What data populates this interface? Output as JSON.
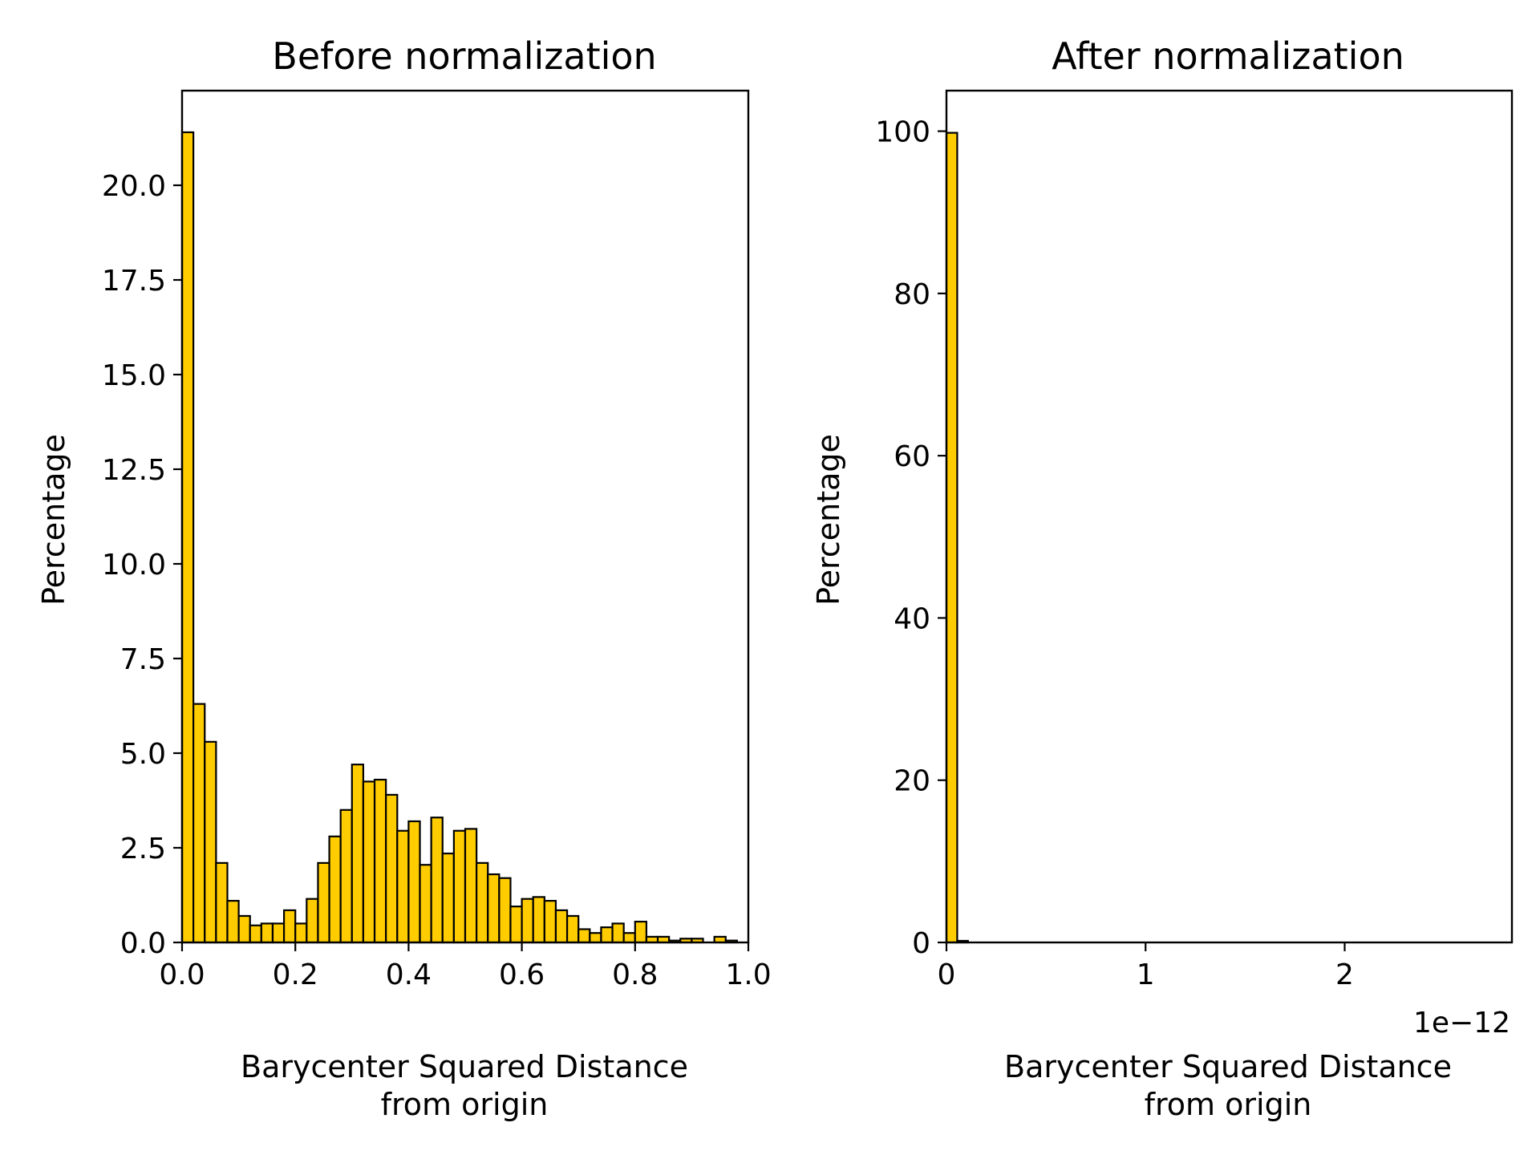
{
  "chart_data": [
    {
      "type": "bar",
      "subtype": "histogram",
      "title": "Before normalization",
      "xlabel": "Barycenter Squared Distance\nfrom origin",
      "xlabel_lines": [
        "Barycenter Squared Distance",
        "from origin"
      ],
      "ylabel": "Percentage",
      "xlim": [
        0,
        1
      ],
      "ylim": [
        0,
        22.5
      ],
      "xticks": [
        0.0,
        0.2,
        0.4,
        0.6,
        0.8,
        1.0
      ],
      "xtick_labels": [
        "0.0",
        "0.2",
        "0.4",
        "0.6",
        "0.8",
        "1.0"
      ],
      "yticks": [
        0,
        2.5,
        5,
        7.5,
        10,
        12.5,
        15,
        17.5,
        20
      ],
      "ytick_labels": [
        "0.0",
        "2.5",
        "5.0",
        "7.5",
        "10.0",
        "12.5",
        "15.0",
        "17.5",
        "20.0"
      ],
      "x_offset_label": "",
      "bins": 50,
      "bin_range": [
        0,
        1
      ],
      "values": [
        21.4,
        6.3,
        5.3,
        2.1,
        1.1,
        0.7,
        0.45,
        0.5,
        0.5,
        0.85,
        0.5,
        1.15,
        2.1,
        2.8,
        3.5,
        4.7,
        4.25,
        4.3,
        3.9,
        2.95,
        3.2,
        2.05,
        3.3,
        2.35,
        2.95,
        3.0,
        2.1,
        1.8,
        1.7,
        0.95,
        1.15,
        1.2,
        1.1,
        0.85,
        0.7,
        0.35,
        0.25,
        0.4,
        0.5,
        0.25,
        0.55,
        0.15,
        0.15,
        0.05,
        0.1,
        0.1,
        0.0,
        0.15,
        0.05,
        0.0
      ],
      "grid": false,
      "legend": "none"
    },
    {
      "type": "bar",
      "subtype": "histogram",
      "title": "After normalization",
      "xlabel": "Barycenter Squared Distance\nfrom origin",
      "xlabel_lines": [
        "Barycenter Squared Distance",
        "from origin"
      ],
      "ylabel": "Percentage",
      "xlim": [
        0,
        2.84
      ],
      "ylim": [
        0,
        105
      ],
      "xticks": [
        0,
        1,
        2
      ],
      "xtick_labels": [
        "0",
        "1",
        "2"
      ],
      "yticks": [
        0,
        20,
        40,
        60,
        80,
        100
      ],
      "ytick_labels": [
        "0",
        "20",
        "40",
        "60",
        "80",
        "100"
      ],
      "x_offset_label": "1e−12",
      "x_scale_factor": 1e-12,
      "bins": 50,
      "bin_range": [
        0,
        2.7
      ],
      "values": [
        99.8,
        0.2,
        0,
        0,
        0,
        0,
        0,
        0,
        0,
        0,
        0,
        0,
        0,
        0,
        0,
        0,
        0,
        0,
        0,
        0,
        0,
        0,
        0,
        0,
        0,
        0,
        0,
        0,
        0,
        0,
        0,
        0,
        0,
        0,
        0,
        0,
        0,
        0,
        0,
        0,
        0,
        0,
        0,
        0,
        0,
        0,
        0,
        0,
        0,
        0
      ],
      "grid": false,
      "legend": "none"
    }
  ],
  "colors": {
    "bar_fill": "#FFCC00",
    "bar_edge": "#000000",
    "axes": "#000000",
    "background": "#FFFFFF"
  }
}
